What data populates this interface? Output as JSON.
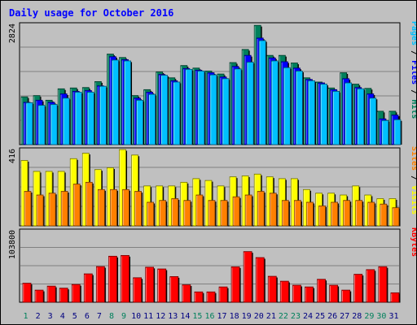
{
  "chart_data": {
    "type": "bar",
    "title": "Daily usage for October 2016",
    "categories": [
      "1",
      "2",
      "3",
      "4",
      "5",
      "6",
      "7",
      "8",
      "9",
      "10",
      "11",
      "12",
      "13",
      "14",
      "15",
      "16",
      "17",
      "18",
      "19",
      "20",
      "21",
      "22",
      "23",
      "24",
      "25",
      "26",
      "27",
      "28",
      "29",
      "30",
      "31"
    ],
    "weekend_days": [
      "1",
      "8",
      "9",
      "15",
      "16",
      "22",
      "23",
      "29",
      "30"
    ],
    "panels": [
      {
        "name": "pages-files-hits",
        "y_max": 2824,
        "y_max_label": "2824",
        "legend": [
          {
            "text": "Pages",
            "color": "#00c0ff"
          },
          {
            "text": " / ",
            "color": "#000000"
          },
          {
            "text": "Files",
            "color": "#0000ff"
          },
          {
            "text": " / ",
            "color": "#000000"
          },
          {
            "text": "Hits",
            "color": "#00805c"
          }
        ],
        "series": [
          {
            "name": "Hits",
            "color": "#00805c",
            "values": [
              1130,
              1160,
              1050,
              1320,
              1340,
              1350,
              1490,
              2140,
              2060,
              1160,
              1300,
              1720,
              1580,
              1870,
              1810,
              1740,
              1670,
              1940,
              2250,
              2820,
              2110,
              2110,
              1930,
              1580,
              1480,
              1340,
              1700,
              1430,
              1330,
              790,
              790
            ]
          },
          {
            "name": "Files",
            "color": "#0000ff",
            "values": [
              1000,
              1050,
              1000,
              1200,
              1260,
              1280,
              1390,
              2080,
              2010,
              1100,
              1240,
              1660,
              1510,
              1800,
              1760,
              1700,
              1600,
              1850,
              2110,
              2520,
              2050,
              1960,
              1810,
              1540,
              1460,
              1300,
              1560,
              1350,
              1200,
              610,
              700
            ]
          },
          {
            "name": "Pages",
            "color": "#00c0ff",
            "values": [
              990,
              930,
              950,
              1100,
              1240,
              1240,
              1380,
              2000,
              1980,
              1050,
              1190,
              1640,
              1480,
              1780,
              1740,
              1650,
              1560,
              1790,
              1950,
              2460,
              1980,
              1820,
              1740,
              1510,
              1430,
              1260,
              1460,
              1320,
              1100,
              570,
              590
            ]
          }
        ]
      },
      {
        "name": "visits-sites",
        "y_max": 416,
        "y_max_label": "416",
        "legend": [
          {
            "text": "Sites",
            "color": "#ff8000"
          },
          {
            "text": " / ",
            "color": "#000000"
          },
          {
            "text": "Visits",
            "color": "#ffff00"
          }
        ],
        "series": [
          {
            "name": "Visits",
            "color": "#ffff00",
            "values": [
              360,
              300,
              300,
              300,
              370,
              400,
              310,
              320,
              420,
              390,
              220,
              220,
              220,
              240,
              260,
              250,
              220,
              270,
              275,
              285,
              270,
              260,
              260,
              200,
              180,
              180,
              170,
              220,
              170,
              150,
              150
            ]
          },
          {
            "name": "Sites",
            "color": "#ff8000",
            "values": [
              190,
              170,
              180,
              190,
              230,
              240,
              200,
              200,
              200,
              190,
              130,
              140,
              150,
              140,
              170,
              140,
              140,
              160,
              170,
              190,
              180,
              140,
              140,
              130,
              110,
              130,
              140,
              140,
              130,
              120,
              100
            ]
          }
        ]
      },
      {
        "name": "kbytes",
        "y_max": 103800,
        "y_max_label": "103800",
        "legend": [
          {
            "text": "KBytes",
            "color": "#ff0000"
          }
        ],
        "series": [
          {
            "name": "KBytes",
            "color": "#ff0000",
            "values": [
              28000,
              17800,
              23700,
              20700,
              26100,
              41700,
              52400,
              67600,
              68700,
              36000,
              51500,
              48900,
              37700,
              25600,
              15200,
              15200,
              22500,
              52000,
              74400,
              65600,
              38100,
              30900,
              25000,
              22500,
              33700,
              25000,
              17800,
              41100,
              47900,
              52200,
              13900
            ]
          }
        ]
      }
    ]
  }
}
